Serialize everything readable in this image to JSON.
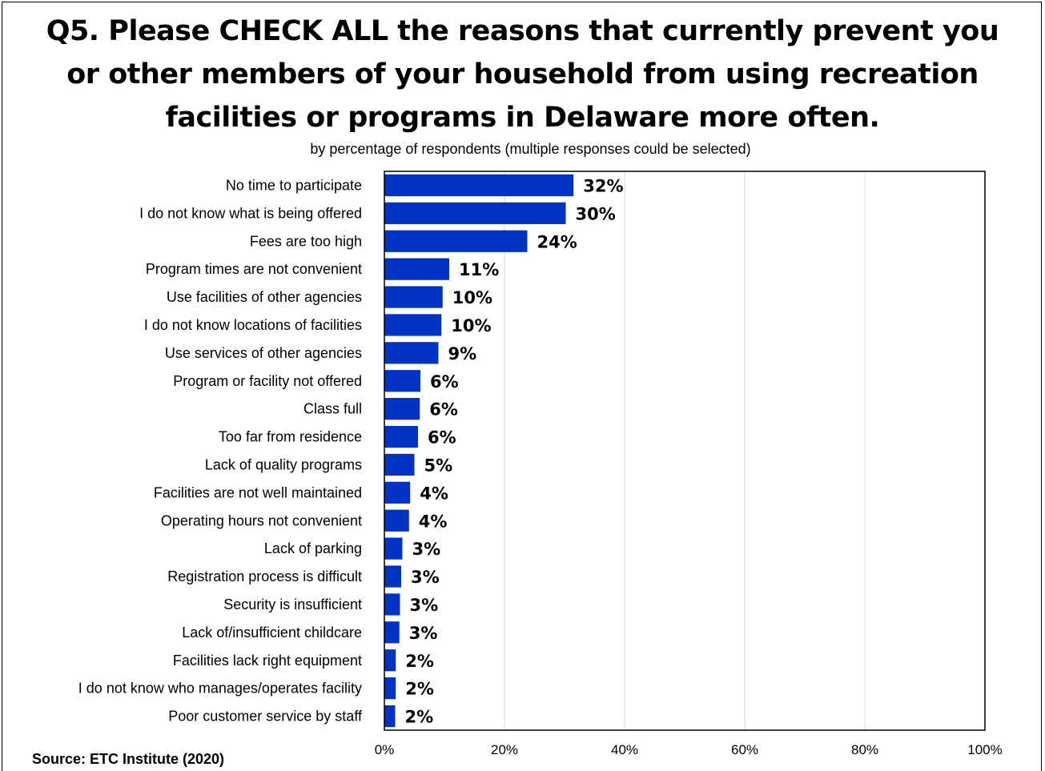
{
  "title": "Q5. Please CHECK ALL the reasons that currently prevent you or other members of your household from using recreation facilities or programs in Delaware more often.",
  "subtitle": "by percentage of respondents (multiple responses could be selected)",
  "source": "Source:  ETC Institute (2020)",
  "colors": {
    "bar": "#0033c4",
    "grid": "#d9d9d9",
    "axis": "#000000"
  },
  "chart_data": {
    "type": "bar",
    "orientation": "horizontal",
    "title": "Q5. Please CHECK ALL the reasons that currently prevent you or other members of your household from using recreation facilities or programs in Delaware more often.",
    "subtitle": "by percentage of respondents (multiple responses could be selected)",
    "xlabel": "",
    "ylabel": "",
    "xlim": [
      0,
      100
    ],
    "ticks": [
      0,
      20,
      40,
      60,
      80,
      100
    ],
    "tick_labels": [
      "0%",
      "20%",
      "40%",
      "60%",
      "80%",
      "100%"
    ],
    "grid": true,
    "categories": [
      "No time to participate",
      "I do not know what is being offered",
      "Fees are too high",
      "Program times are not convenient",
      "Use facilities of other agencies",
      "I do not know locations of facilities",
      "Use services of other agencies",
      "Program or facility not offered",
      "Class full",
      "Too far from residence",
      "Lack of quality programs",
      "Facilities are not well maintained",
      "Operating hours not convenient",
      "Lack of parking",
      "Registration process is difficult",
      "Security is insufficient",
      "Lack of/insufficient childcare",
      "Facilities lack right equipment",
      "I do not know who manages/operates facility",
      "Poor customer service by staff"
    ],
    "values": [
      31.5,
      30.2,
      23.8,
      10.8,
      9.7,
      9.5,
      9.0,
      6.0,
      5.9,
      5.6,
      5.0,
      4.3,
      4.1,
      3.0,
      2.8,
      2.6,
      2.5,
      1.9,
      1.9,
      1.8
    ],
    "value_labels": [
      "32%",
      "30%",
      "24%",
      "11%",
      "10%",
      "10%",
      "9%",
      "6%",
      "6%",
      "6%",
      "5%",
      "4%",
      "4%",
      "3%",
      "3%",
      "3%",
      "3%",
      "2%",
      "2%",
      "2%"
    ]
  }
}
